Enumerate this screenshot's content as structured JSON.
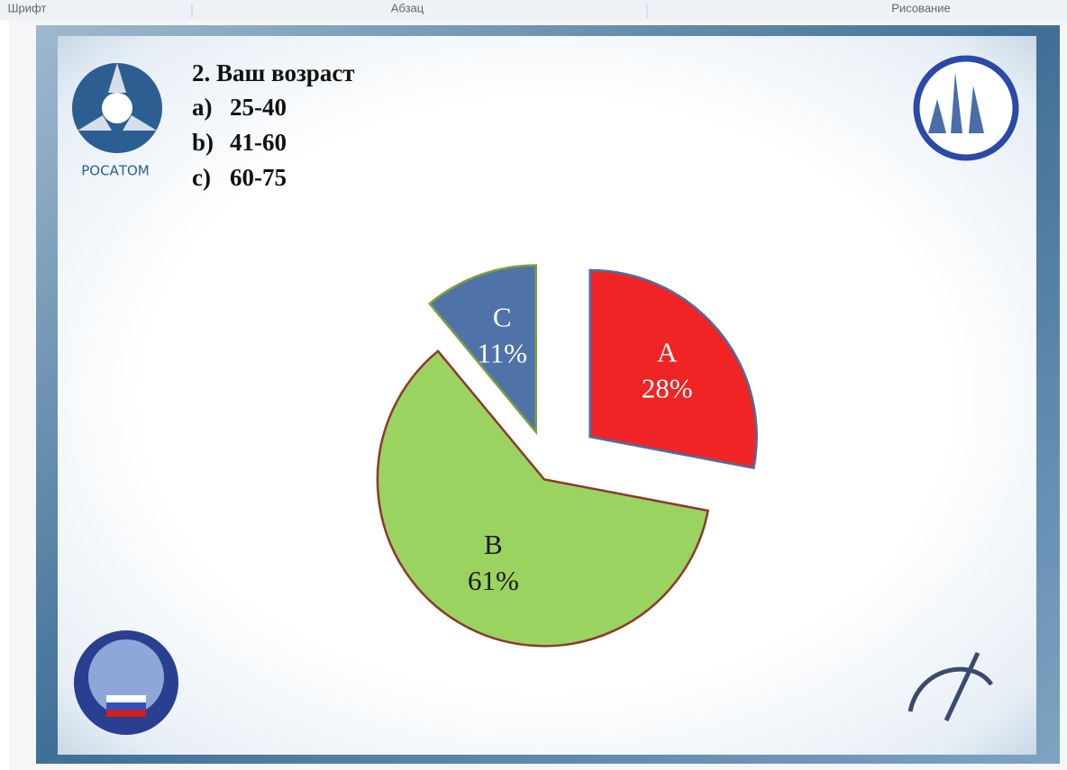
{
  "toolbar": {
    "groups": [
      "Шрифт",
      "Абзац",
      "Рисование"
    ]
  },
  "slide": {
    "logo_text": "РОСАТОМ",
    "question": {
      "title": "2. Ваш возраст",
      "options": [
        {
          "letter": "a)",
          "text": "25-40"
        },
        {
          "letter": "b)",
          "text": "41-60"
        },
        {
          "letter": "c)",
          "text": "60-75"
        }
      ]
    }
  },
  "chart_data": {
    "type": "pie",
    "categories": [
      "A",
      "B",
      "C"
    ],
    "values": [
      28,
      61,
      11
    ],
    "value_labels": [
      "28%",
      "61%",
      "11%"
    ],
    "colors": [
      "#f02424",
      "#9bd360",
      "#4f73a8"
    ],
    "edge_colors": [
      "#4a6ea8",
      "#8b3a2a",
      "#7aa040"
    ],
    "label_colors": [
      "#ffffff",
      "#1a1a1a",
      "#ffffff"
    ]
  }
}
